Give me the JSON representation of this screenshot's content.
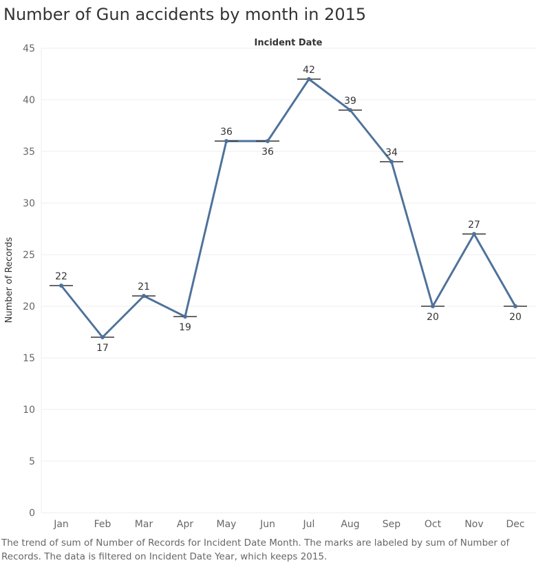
{
  "title": "Number of Gun accidents by month in 2015",
  "caption_lines": [
    "The trend of sum of Number of Records for Incident Date Month.  The marks are labeled by sum of Number of",
    "Records. The data is filtered on Incident Date Year, which keeps 2015."
  ],
  "colors": {
    "line": "#4e729a",
    "marker": "#333333",
    "grid": "#ececec",
    "text": "#333333",
    "tick": "#666666"
  },
  "chart_data": {
    "type": "line",
    "title": "Number of Gun accidents by month in 2015",
    "xlabel": "Incident Date",
    "ylabel": "Number of Records",
    "categories": [
      "Jan",
      "Feb",
      "Mar",
      "Apr",
      "May",
      "Jun",
      "Jul",
      "Aug",
      "Sep",
      "Oct",
      "Nov",
      "Dec"
    ],
    "values": [
      22,
      17,
      21,
      19,
      36,
      36,
      42,
      39,
      34,
      20,
      27,
      20
    ],
    "label_position": [
      "above",
      "below",
      "above",
      "below",
      "above",
      "below",
      "above",
      "above",
      "above",
      "below",
      "above",
      "below"
    ],
    "yticks": [
      0,
      5,
      10,
      15,
      20,
      25,
      30,
      35,
      40,
      45
    ],
    "ylim": [
      0,
      45
    ],
    "grid": true,
    "legend": "none"
  }
}
